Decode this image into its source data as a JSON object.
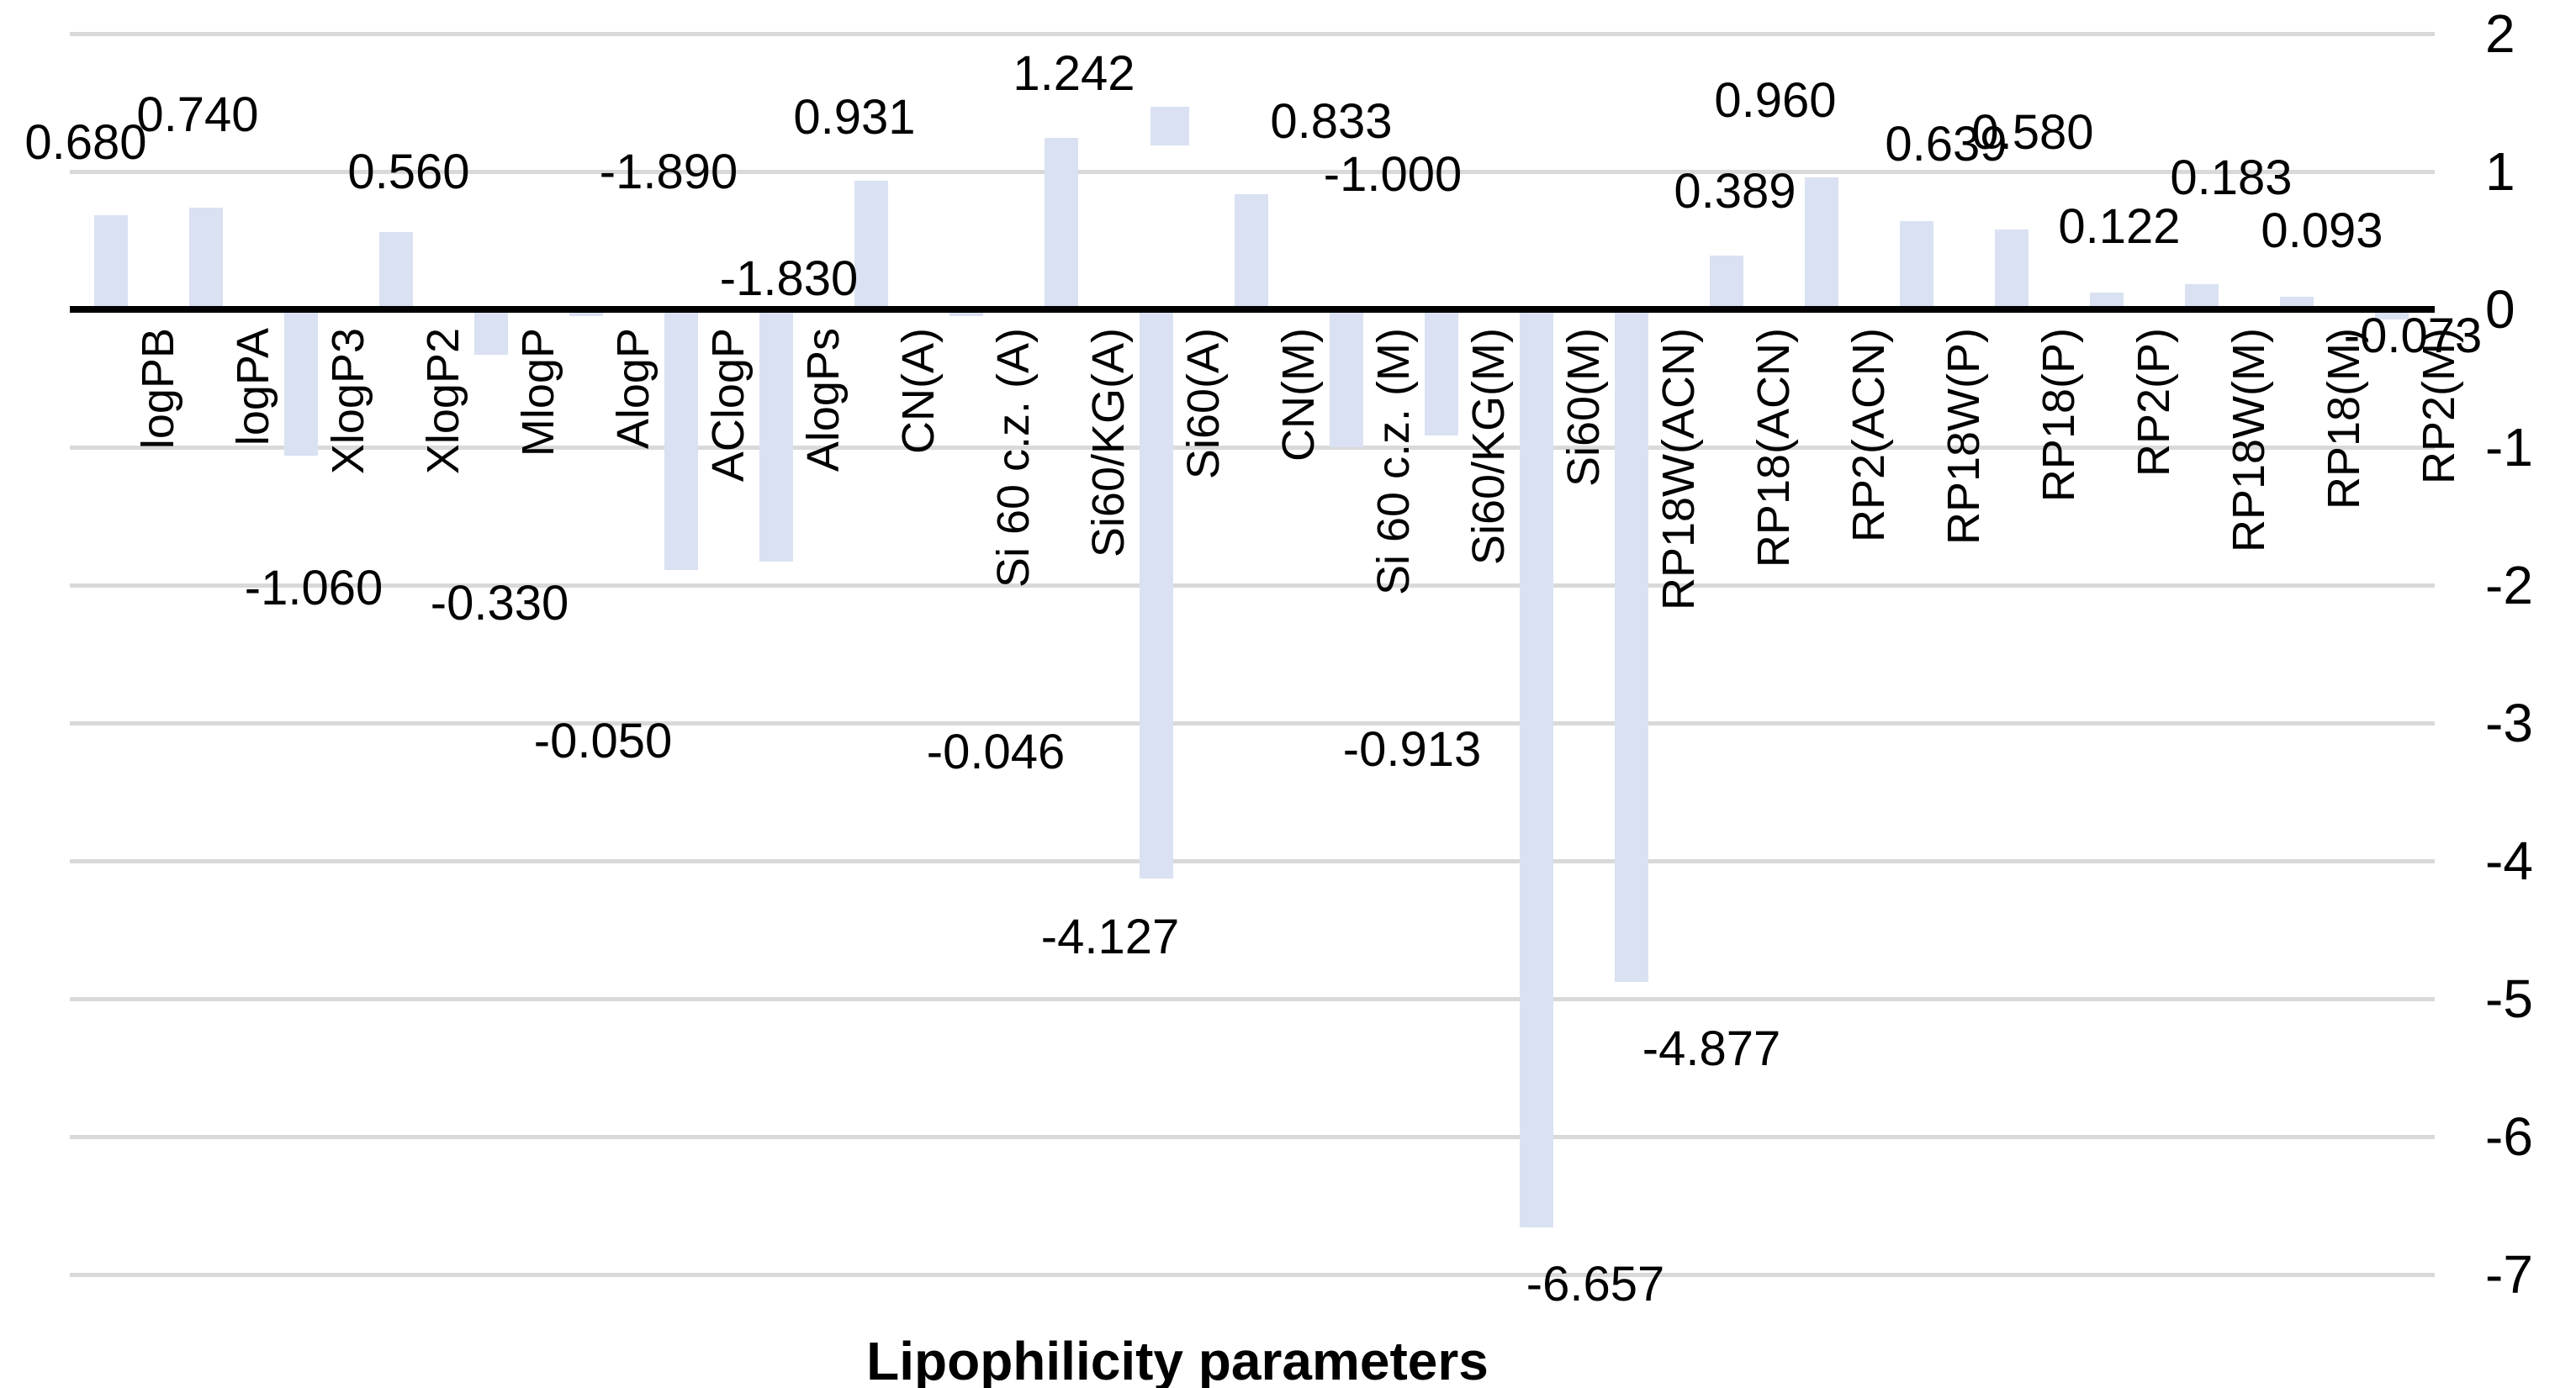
{
  "chart_data": {
    "type": "bar",
    "title": "",
    "xlabel": "Lipophilicity parameters",
    "ylabel": "",
    "ylim": [
      -7,
      2
    ],
    "yticks": [
      2,
      1,
      0,
      -1,
      -2,
      -3,
      -4,
      -5,
      -6,
      -7
    ],
    "grid": true,
    "legend": false,
    "bar_color": "#D9E1F2",
    "gridline_color": "#D9D9D9",
    "zero_line_color": "#000000",
    "text_color": "#000000",
    "categories": [
      "logPB",
      "logPA",
      "XlogP3",
      "XlogP2",
      "MlogP",
      "AlogP",
      "AClogP",
      "AlogPs",
      "CN(A)",
      "Si 60 c.z. (A)",
      "Si60/KG(A)",
      "Si60(A)",
      "CN(M)",
      "Si 60 c.z. (M)",
      "Si60/KG(M)",
      "Si60(M)",
      "RP18W(ACN)",
      "RP18(ACN)",
      "RP2(ACN)",
      "RP18W(P)",
      "RP18(P)",
      "RP2(P)",
      "RP18W(M)",
      "RP18(M)",
      "RP2(M)"
    ],
    "values": [
      0.68,
      0.74,
      -1.06,
      0.56,
      -0.33,
      -0.05,
      -1.89,
      -1.83,
      0.931,
      -0.046,
      1.242,
      -4.127,
      0.833,
      -1.0,
      -0.913,
      -6.657,
      -4.877,
      0.389,
      0.96,
      0.639,
      0.58,
      0.122,
      0.183,
      0.093,
      -0.073
    ],
    "data_labels": [
      "0.680",
      "0.740",
      "-1.060",
      "0.560",
      "-0.330",
      "-0.050",
      "-1.890",
      "-1.830",
      "0.931",
      "-0.046",
      "1.242",
      "-4.127",
      "0.833",
      "-1.000",
      "-0.913",
      "-6.657",
      "-4.877",
      "0.389",
      "0.960",
      "0.639",
      "0.580",
      "0.122",
      "0.183",
      "0.093",
      "-0.073"
    ],
    "label_placement": [
      {
        "dx": -30,
        "y": 170
      },
      {
        "dx": -10,
        "y": 137
      },
      {
        "dx": 15,
        "y": 700
      },
      {
        "dx": 15,
        "y": 205
      },
      {
        "dx": 10,
        "y": 718
      },
      {
        "dx": 20,
        "y": 882
      },
      {
        "dx": -15,
        "y": 205
      },
      {
        "dx": 15,
        "y": 332
      },
      {
        "dx": -20,
        "y": 140
      },
      {
        "dx": 35,
        "y": 895
      },
      {
        "dx": 15,
        "y": 88
      },
      {
        "dx": -55,
        "y": 1115
      },
      {
        "dx": 95,
        "y": 145
      },
      {
        "dx": 55,
        "y": 208
      },
      {
        "dx": -35,
        "y": 892
      },
      {
        "dx": 70,
        "y": 1528
      },
      {
        "dx": 95,
        "y": 1248
      },
      {
        "dx": 10,
        "y": 228
      },
      {
        "dx": -55,
        "y": 120
      },
      {
        "dx": 35,
        "y": 172
      },
      {
        "dx": 25,
        "y": 158
      },
      {
        "dx": 15,
        "y": 270
      },
      {
        "dx": 35,
        "y": 212
      },
      {
        "dx": 30,
        "y": 275
      },
      {
        "dx": 25,
        "y": 400
      }
    ],
    "stray_marker": {
      "x": 1368,
      "y": 127,
      "w": 46,
      "h": 46,
      "color": "#D9E1F2"
    }
  }
}
